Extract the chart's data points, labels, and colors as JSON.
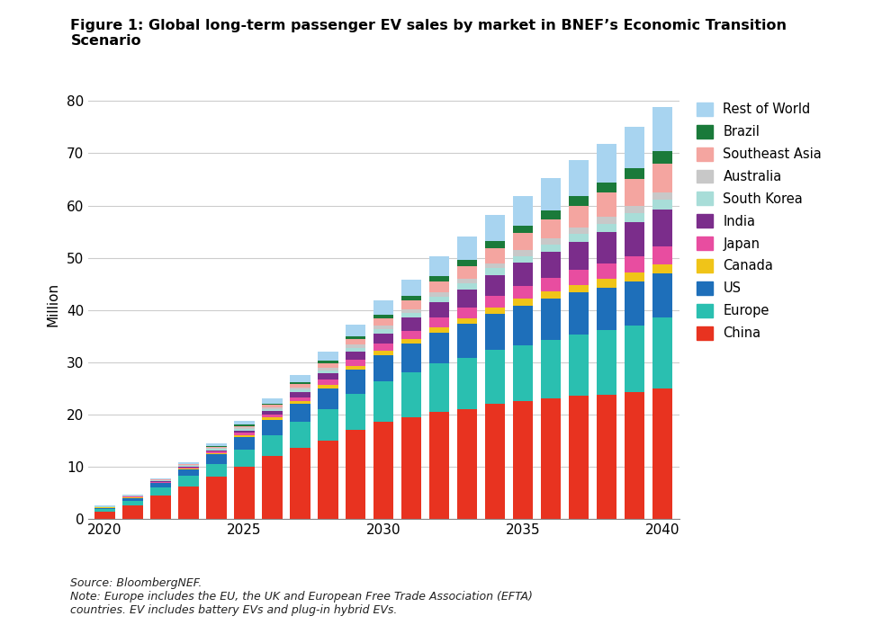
{
  "title": "Figure 1: Global long-term passenger EV sales by market in BNEF’s Economic Transition\nScenario",
  "ylabel": "Million",
  "source_note": "Source: BloombergNEF.\nNote: Europe includes the EU, the UK and European Free Trade Association (EFTA)\ncountries. EV includes battery EVs and plug-in hybrid EVs.",
  "years": [
    2020,
    2021,
    2022,
    2023,
    2024,
    2025,
    2026,
    2027,
    2028,
    2029,
    2030,
    2031,
    2032,
    2033,
    2034,
    2035,
    2036,
    2037,
    2038,
    2039,
    2040
  ],
  "regions": [
    "China",
    "Europe",
    "US",
    "Canada",
    "Japan",
    "India",
    "South Korea",
    "Australia",
    "Southeast Asia",
    "Brazil",
    "Rest of World"
  ],
  "colors": [
    "#e83320",
    "#2abfb0",
    "#1e6fba",
    "#f0c418",
    "#e84da0",
    "#7b2d8b",
    "#a8ddd8",
    "#c8c8c8",
    "#f4a5a0",
    "#1a7a3a",
    "#a8d4f0"
  ],
  "data": {
    "China": [
      1.3,
      2.5,
      4.5,
      6.2,
      8.0,
      10.0,
      12.0,
      13.5,
      15.0,
      17.0,
      18.5,
      19.5,
      20.5,
      21.0,
      22.0,
      22.5,
      23.0,
      23.5,
      23.8,
      24.2,
      25.0
    ],
    "Europe": [
      0.5,
      1.0,
      1.5,
      2.0,
      2.5,
      3.2,
      4.0,
      5.0,
      6.0,
      7.0,
      7.8,
      8.5,
      9.2,
      9.8,
      10.3,
      10.8,
      11.3,
      11.8,
      12.3,
      12.8,
      13.5
    ],
    "US": [
      0.3,
      0.5,
      0.8,
      1.2,
      1.8,
      2.5,
      3.0,
      3.5,
      4.0,
      4.5,
      5.0,
      5.5,
      6.0,
      6.5,
      7.0,
      7.5,
      7.8,
      8.0,
      8.2,
      8.4,
      8.5
    ],
    "Canada": [
      0.05,
      0.07,
      0.1,
      0.15,
      0.2,
      0.3,
      0.4,
      0.5,
      0.6,
      0.7,
      0.8,
      0.9,
      1.0,
      1.1,
      1.2,
      1.3,
      1.4,
      1.5,
      1.6,
      1.7,
      1.8
    ],
    "Japan": [
      0.1,
      0.15,
      0.2,
      0.3,
      0.4,
      0.5,
      0.6,
      0.8,
      1.0,
      1.2,
      1.4,
      1.6,
      1.8,
      2.0,
      2.2,
      2.4,
      2.6,
      2.8,
      3.0,
      3.2,
      3.4
    ],
    "India": [
      0.02,
      0.05,
      0.1,
      0.15,
      0.25,
      0.4,
      0.6,
      0.9,
      1.2,
      1.6,
      2.0,
      2.5,
      3.0,
      3.5,
      4.0,
      4.5,
      5.0,
      5.5,
      6.0,
      6.5,
      7.0
    ],
    "South Korea": [
      0.05,
      0.08,
      0.12,
      0.18,
      0.25,
      0.35,
      0.45,
      0.55,
      0.65,
      0.75,
      0.85,
      0.95,
      1.05,
      1.15,
      1.25,
      1.35,
      1.45,
      1.55,
      1.65,
      1.75,
      1.85
    ],
    "Australia": [
      0.03,
      0.05,
      0.08,
      0.12,
      0.18,
      0.25,
      0.32,
      0.4,
      0.48,
      0.56,
      0.65,
      0.72,
      0.8,
      0.88,
      0.96,
      1.04,
      1.12,
      1.2,
      1.28,
      1.36,
      1.44
    ],
    "Southeast Asia": [
      0.02,
      0.04,
      0.07,
      0.12,
      0.2,
      0.3,
      0.45,
      0.65,
      0.85,
      1.1,
      1.4,
      1.7,
      2.1,
      2.5,
      2.9,
      3.3,
      3.7,
      4.1,
      4.6,
      5.1,
      5.6
    ],
    "Brazil": [
      0.01,
      0.02,
      0.04,
      0.07,
      0.12,
      0.18,
      0.26,
      0.36,
      0.48,
      0.6,
      0.75,
      0.9,
      1.05,
      1.2,
      1.35,
      1.5,
      1.65,
      1.8,
      1.95,
      2.1,
      2.25
    ],
    "Rest of World": [
      0.1,
      0.15,
      0.25,
      0.38,
      0.55,
      0.75,
      1.0,
      1.3,
      1.7,
      2.1,
      2.6,
      3.1,
      3.7,
      4.4,
      5.0,
      5.7,
      6.3,
      6.9,
      7.5,
      8.0,
      8.5
    ]
  },
  "ylim": [
    0,
    82
  ],
  "yticks": [
    0,
    10,
    20,
    30,
    40,
    50,
    60,
    70,
    80
  ],
  "background_color": "#ffffff",
  "grid_color": "#cccccc"
}
